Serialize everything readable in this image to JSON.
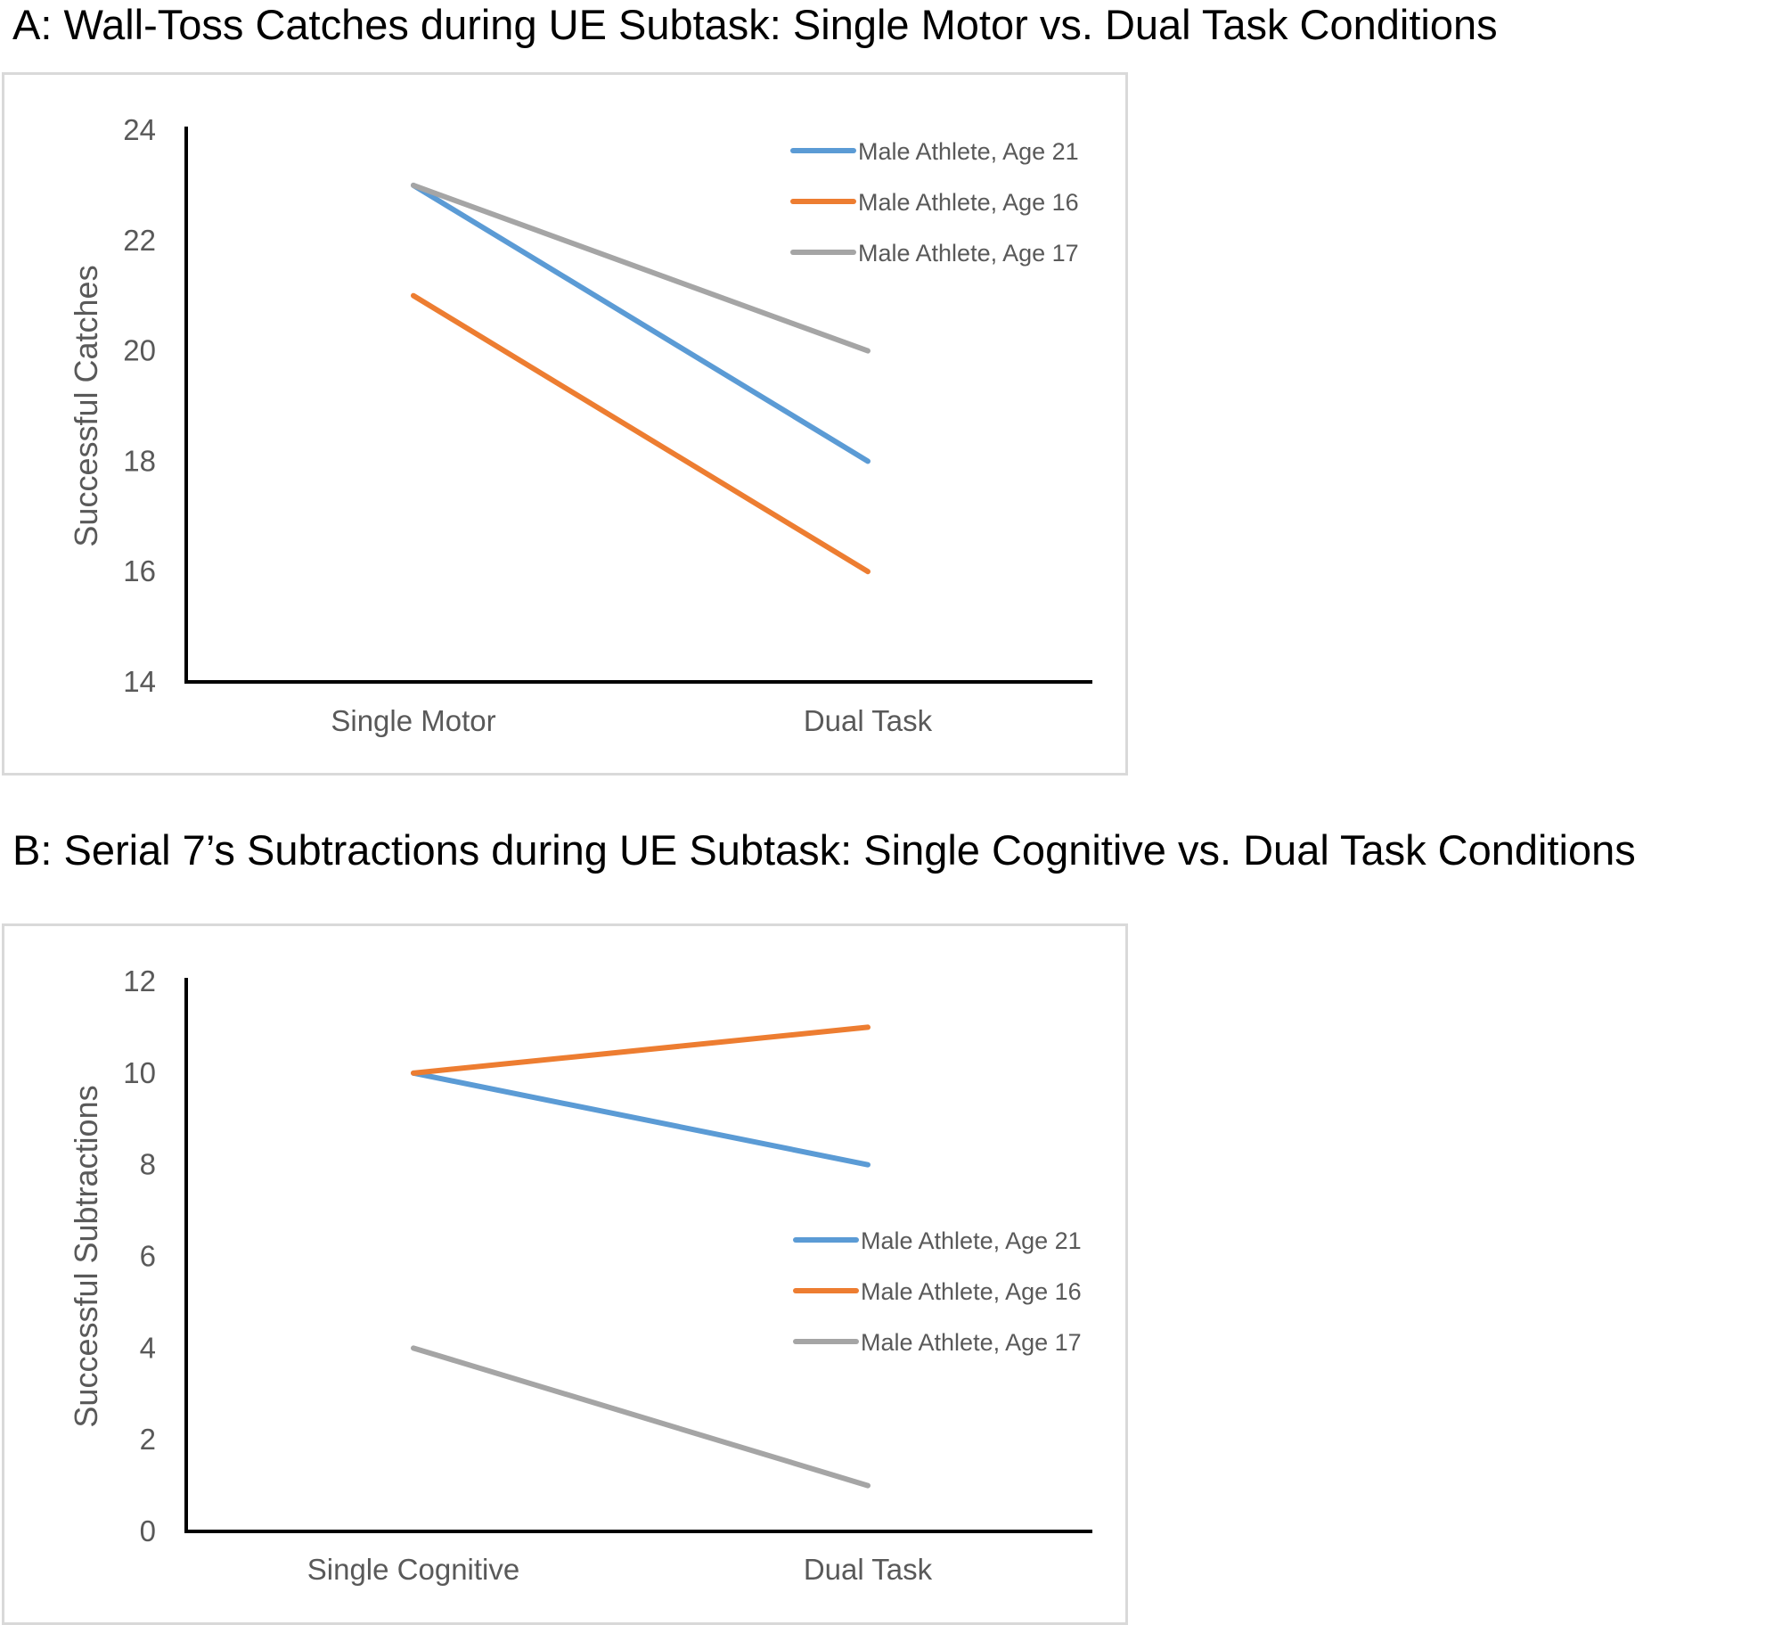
{
  "titles": {
    "a": "A: Wall-Toss Catches during UE Subtask: Single Motor vs. Dual Task Conditions",
    "b": "B: Serial 7’s Subtractions during UE Subtask: Single Cognitive vs. Dual Task Conditions"
  },
  "chart_data": [
    {
      "type": "line",
      "title": "A: Wall-Toss Catches during UE Subtask: Single Motor vs. Dual Task Conditions",
      "xlabel": "",
      "ylabel": "Successful Catches",
      "categories": [
        "Single Motor",
        "Dual Task"
      ],
      "ylim": [
        14,
        24
      ],
      "yticks": [
        14,
        16,
        18,
        20,
        22,
        24
      ],
      "grid": false,
      "legend_position": "top-right",
      "series": [
        {
          "name": "Male Athlete, Age 21",
          "color": "#5b9bd5",
          "values": [
            23,
            18
          ]
        },
        {
          "name": "Male Athlete, Age 16",
          "color": "#ed7d31",
          "values": [
            21,
            16
          ]
        },
        {
          "name": "Male Athlete, Age 17",
          "color": "#a5a5a5",
          "values": [
            23,
            20
          ]
        }
      ]
    },
    {
      "type": "line",
      "title": "B: Serial 7’s Subtractions during UE Subtask: Single Cognitive vs. Dual Task Conditions",
      "xlabel": "",
      "ylabel": "Successful Subtractions",
      "categories": [
        "Single Cognitive",
        "Dual Task"
      ],
      "ylim": [
        0,
        12
      ],
      "yticks": [
        0,
        2,
        4,
        6,
        8,
        10,
        12
      ],
      "grid": false,
      "legend_position": "right",
      "series": [
        {
          "name": "Male Athlete, Age 21",
          "color": "#5b9bd5",
          "values": [
            10,
            8
          ]
        },
        {
          "name": "Male Athlete, Age 16",
          "color": "#ed7d31",
          "values": [
            10,
            11
          ]
        },
        {
          "name": "Male Athlete, Age 17",
          "color": "#a5a5a5",
          "values": [
            4,
            1
          ]
        }
      ]
    }
  ]
}
